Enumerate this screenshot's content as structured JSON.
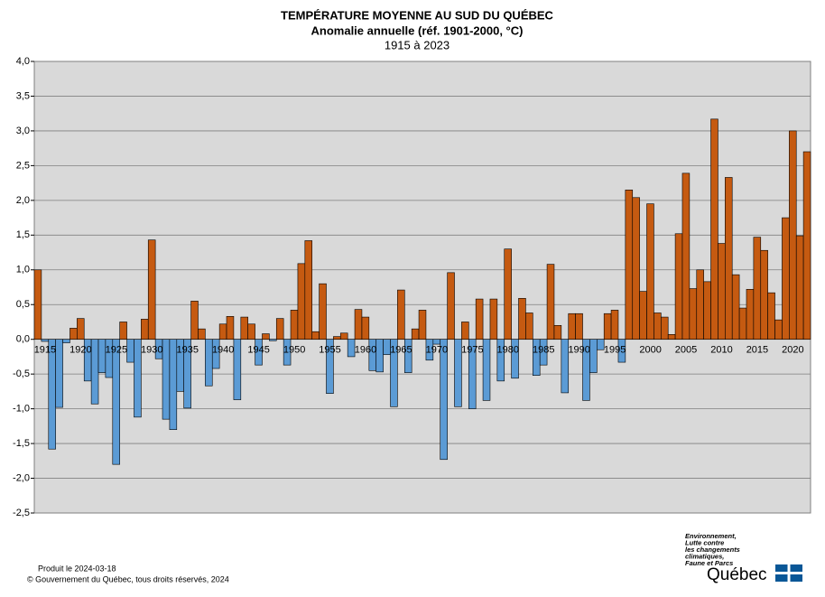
{
  "chart_data": {
    "type": "bar",
    "title": "TEMPÉRATURE MOYENNE AU SUD DU QUÉBEC",
    "subtitle": "Anomalie annuelle (réf. 1901-2000, °C)",
    "period": "1915 à 2023",
    "categories": [
      "1915",
      null,
      null,
      null,
      null,
      "1920",
      null,
      null,
      null,
      null,
      "1925",
      null,
      null,
      null,
      null,
      "1930",
      null,
      null,
      null,
      null,
      "1935",
      null,
      null,
      null,
      null,
      "1940",
      null,
      null,
      null,
      null,
      "1945",
      null,
      null,
      null,
      null,
      "1950",
      null,
      null,
      null,
      null,
      "1955",
      null,
      null,
      null,
      null,
      "1960",
      null,
      null,
      null,
      null,
      "1965",
      null,
      null,
      null,
      null,
      "1970",
      null,
      null,
      null,
      null,
      "1975",
      null,
      null,
      null,
      null,
      "1980",
      null,
      null,
      null,
      null,
      "1985",
      null,
      null,
      null,
      null,
      "1990",
      null,
      null,
      null,
      null,
      "1995",
      null,
      null,
      null,
      null,
      "2000",
      null,
      null,
      null,
      null,
      "2005",
      null,
      null,
      null,
      null,
      "2010",
      null,
      null,
      null,
      null,
      "2015",
      null,
      null,
      null,
      null,
      "2020",
      null,
      null,
      null
    ],
    "values": [
      1.0,
      -0.03,
      -1.58,
      -0.98,
      -0.05,
      0.16,
      0.3,
      -0.6,
      -0.93,
      -0.48,
      -0.55,
      -1.8,
      0.25,
      -0.33,
      -1.12,
      0.29,
      1.43,
      -0.28,
      -1.15,
      -1.3,
      -0.75,
      -0.99,
      0.55,
      0.15,
      -0.67,
      -0.42,
      0.22,
      0.33,
      -0.87,
      0.32,
      0.22,
      -0.37,
      0.08,
      -0.02,
      0.3,
      -0.37,
      0.42,
      1.09,
      1.42,
      0.11,
      0.8,
      -0.78,
      0.04,
      0.09,
      -0.25,
      0.43,
      0.32,
      -0.45,
      -0.47,
      -0.22,
      -0.97,
      0.71,
      -0.48,
      0.15,
      0.42,
      -0.3,
      -0.07,
      -1.73,
      0.96,
      -0.97,
      0.25,
      -1.0,
      0.58,
      -0.88,
      0.58,
      -0.6,
      1.3,
      -0.56,
      0.59,
      0.38,
      -0.52,
      -0.37,
      1.08,
      0.2,
      -0.77,
      0.37,
      0.37,
      -0.88,
      -0.48,
      -0.15,
      0.37,
      0.42,
      -0.33,
      2.15,
      2.04,
      0.69,
      1.95,
      0.38,
      0.32,
      0.07,
      1.52,
      2.39,
      0.73,
      1.0,
      0.83,
      3.17,
      1.38,
      2.33,
      0.93,
      0.45,
      0.72,
      1.47,
      1.28,
      0.67,
      0.28,
      1.75,
      3.0,
      1.49,
      2.7
    ],
    "positive_color": "#c55a11",
    "negative_color": "#5b9bd5",
    "ylim": [
      -2.5,
      4.0
    ],
    "yticks": [
      {
        "value": 4.0,
        "label": "4,0"
      },
      {
        "value": 3.5,
        "label": "3,5"
      },
      {
        "value": 3.0,
        "label": "3,0"
      },
      {
        "value": 2.5,
        "label": "2,5"
      },
      {
        "value": 2.0,
        "label": "2,0"
      },
      {
        "value": 1.5,
        "label": "1,5"
      },
      {
        "value": 1.0,
        "label": "1,0"
      },
      {
        "value": 0.5,
        "label": "0,5"
      },
      {
        "value": 0,
        "label": "0,0"
      },
      {
        "value": -0.5,
        "label": "-0,5"
      },
      {
        "value": -1.0,
        "label": "-1,0"
      },
      {
        "value": -1.5,
        "label": "-1,5"
      },
      {
        "value": -2.0,
        "label": "-2,0"
      },
      {
        "value": -2.5,
        "label": "-2,5"
      }
    ],
    "grid": true
  },
  "footer": {
    "produced": "Produit le 2024-03-18",
    "copyright": "© Gouvernement du Québec, tous droits réservés, 2024",
    "ministry": [
      "Environnement,",
      "Lutte contre",
      "les changements",
      "climatiques,",
      "Faune et Parcs"
    ],
    "brand": "Québec"
  }
}
